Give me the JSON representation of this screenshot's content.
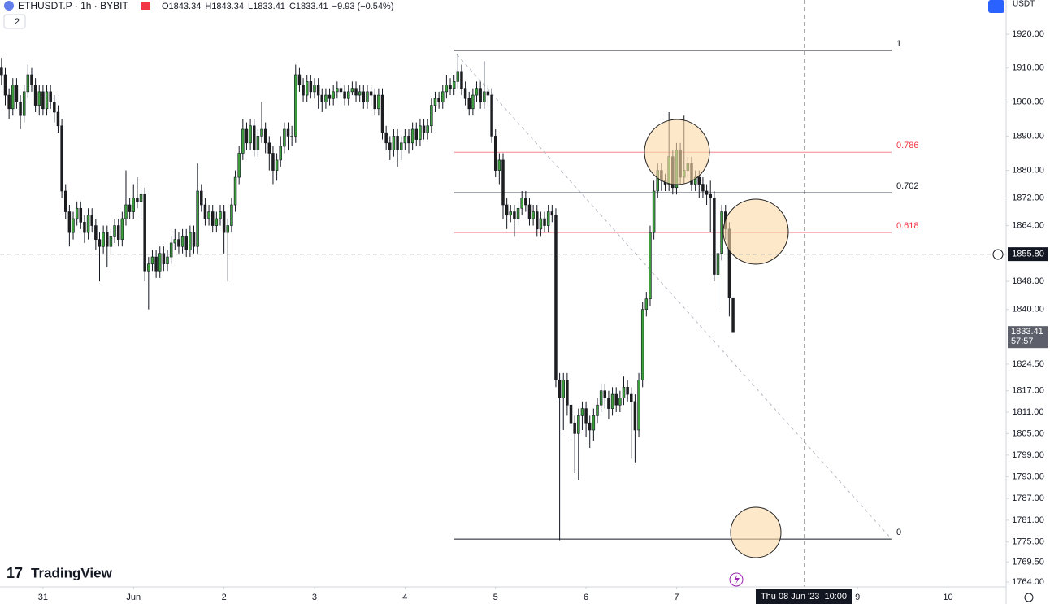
{
  "chart_data": {
    "type": "candlestick",
    "title": "ETHUSDT.P · 1h · BYBIT",
    "ohlc_legend": [
      "O1843.34",
      "H1843.34",
      "L1833.41",
      "C1833.41",
      "−9.93 (−0.54%)"
    ],
    "log_scale": true,
    "grid": false,
    "up_color": "#3c9f3c",
    "down_color": "#1e1e1e",
    "xlim": [
      -0.4,
      266.4
    ],
    "ylim": [
      1762.7,
      1930.2
    ],
    "yticks": [
      {
        "value": 1920,
        "label": "1920.00"
      },
      {
        "value": 1910,
        "label": "1910.00"
      },
      {
        "value": 1900,
        "label": "1900.00"
      },
      {
        "value": 1890,
        "label": "1890.00"
      },
      {
        "value": 1880,
        "label": "1880.00"
      },
      {
        "value": 1872,
        "label": "1872.00"
      },
      {
        "value": 1864,
        "label": "1864.00"
      },
      {
        "value": 1848,
        "label": "1848.00"
      },
      {
        "value": 1840,
        "label": "1840.00"
      },
      {
        "value": 1824.5,
        "label": "1824.50"
      },
      {
        "value": 1817,
        "label": "1817.00"
      },
      {
        "value": 1811,
        "label": "1811.00"
      },
      {
        "value": 1805,
        "label": "1805.00"
      },
      {
        "value": 1799,
        "label": "1799.00"
      },
      {
        "value": 1793,
        "label": "1793.00"
      },
      {
        "value": 1787,
        "label": "1787.00"
      },
      {
        "value": 1781,
        "label": "1781.00"
      },
      {
        "value": 1775,
        "label": "1775.00"
      },
      {
        "value": 1769.5,
        "label": "1769.50"
      },
      {
        "value": 1764,
        "label": "1764.00"
      }
    ],
    "xticks": [
      {
        "value": 11,
        "label": "31"
      },
      {
        "value": 35,
        "label": "Jun"
      },
      {
        "value": 59,
        "label": "2"
      },
      {
        "value": 83,
        "label": "3"
      },
      {
        "value": 107,
        "label": "4"
      },
      {
        "value": 131,
        "label": "5"
      },
      {
        "value": 155,
        "label": "6"
      },
      {
        "value": 179,
        "label": "7"
      },
      {
        "value": 227,
        "label": "9"
      },
      {
        "value": 251,
        "label": "10"
      }
    ],
    "open": [
      1910,
      1908,
      1902,
      1898,
      1905,
      1900,
      1896,
      1903,
      1908,
      1905,
      1899,
      1903,
      1898,
      1903,
      1900,
      1897,
      1893,
      1874,
      1868,
      1862,
      1866,
      1869,
      1865,
      1862,
      1867,
      1864,
      1860,
      1858,
      1862,
      1858,
      1861,
      1864,
      1860,
      1866,
      1870,
      1868,
      1872,
      1871,
      1873,
      1851,
      1853,
      1855,
      1851,
      1856,
      1853,
      1855,
      1859,
      1860,
      1858,
      1861,
      1857,
      1862,
      1858,
      1874,
      1870,
      1866,
      1868,
      1864,
      1866,
      1868,
      1862,
      1864,
      1870,
      1878,
      1885,
      1892,
      1888,
      1893,
      1886,
      1890,
      1892,
      1888,
      1885,
      1880,
      1883,
      1887,
      1892,
      1890,
      1890,
      1908,
      1905,
      1902,
      1906,
      1903,
      1905,
      1902,
      1900,
      1902,
      1901,
      1903,
      1904,
      1903,
      1901,
      1903,
      1904,
      1902,
      1903,
      1900,
      1903,
      1902,
      1898,
      1902,
      1891,
      1888,
      1886,
      1890,
      1886,
      1888,
      1890,
      1888,
      1892,
      1889,
      1893,
      1891,
      1893,
      1899,
      1901,
      1900,
      1903,
      1905,
      1904,
      1906,
      1909,
      1904,
      1901,
      1898,
      1902,
      1904,
      1900,
      1903,
      1902,
      1890,
      1880,
      1883,
      1870,
      1867,
      1868,
      1866,
      1869,
      1872,
      1870,
      1866,
      1868,
      1863,
      1866,
      1864,
      1868,
      1867,
      1820,
      1815,
      1820,
      1813,
      1808,
      1805,
      1810,
      1812,
      1808,
      1806,
      1810,
      1813,
      1817,
      1815,
      1812,
      1816,
      1813,
      1815,
      1818,
      1816,
      1814,
      1806,
      1820,
      1840,
      1843,
      1862,
      1874,
      1880,
      1877,
      1876,
      1884,
      1875,
      1886,
      1878,
      1880,
      1882,
      1876,
      1878,
      1876,
      1874,
      1873,
      1872,
      1850,
      1856,
      1868,
      1863,
      1843.34
    ],
    "high": [
      1913,
      1910,
      1904,
      1907,
      1907,
      1902,
      1905,
      1911,
      1910,
      1907,
      1905,
      1905,
      1905,
      1905,
      1902,
      1899,
      1895,
      1876,
      1870,
      1868,
      1871,
      1871,
      1867,
      1869,
      1869,
      1866,
      1862,
      1864,
      1864,
      1863,
      1866,
      1866,
      1868,
      1880,
      1872,
      1876,
      1878,
      1875,
      1875,
      1855,
      1857,
      1857,
      1858,
      1858,
      1857,
      1861,
      1863,
      1862,
      1863,
      1863,
      1864,
      1864,
      1882,
      1876,
      1872,
      1870,
      1870,
      1868,
      1870,
      1870,
      1866,
      1872,
      1880,
      1887,
      1895,
      1894,
      1895,
      1895,
      1892,
      1900,
      1894,
      1890,
      1887,
      1885,
      1890,
      1894,
      1894,
      1893,
      1911,
      1910,
      1907,
      1908,
      1908,
      1907,
      1907,
      1904,
      1904,
      1904,
      1905,
      1906,
      1906,
      1905,
      1905,
      1906,
      1906,
      1905,
      1905,
      1905,
      1905,
      1904,
      1904,
      1904,
      1893,
      1890,
      1892,
      1892,
      1890,
      1892,
      1892,
      1894,
      1894,
      1895,
      1895,
      1895,
      1901,
      1903,
      1903,
      1905,
      1908,
      1907,
      1908,
      1914,
      1911,
      1906,
      1903,
      1904,
      1906,
      1906,
      1912,
      1905,
      1904,
      1892,
      1885,
      1885,
      1872,
      1870,
      1870,
      1871,
      1874,
      1874,
      1872,
      1870,
      1870,
      1868,
      1868,
      1870,
      1870,
      1869,
      1822,
      1822,
      1822,
      1815,
      1810,
      1812,
      1814,
      1814,
      1810,
      1812,
      1815,
      1819,
      1819,
      1817,
      1818,
      1818,
      1817,
      1821,
      1820,
      1818,
      1816,
      1822,
      1842,
      1845,
      1864,
      1877,
      1882,
      1882,
      1879,
      1897,
      1886,
      1888,
      1888,
      1896,
      1884,
      1884,
      1880,
      1880,
      1878,
      1876,
      1877,
      1874,
      1858,
      1870,
      1870,
      1865,
      1843.34
    ],
    "low": [
      1905,
      1899,
      1895,
      1896,
      1898,
      1892,
      1894,
      1901,
      1903,
      1897,
      1896,
      1896,
      1896,
      1898,
      1894,
      1891,
      1872,
      1866,
      1858,
      1860,
      1864,
      1863,
      1859,
      1860,
      1862,
      1857,
      1848,
      1856,
      1852,
      1856,
      1859,
      1858,
      1858,
      1864,
      1866,
      1866,
      1869,
      1866,
      1848,
      1840,
      1851,
      1849,
      1849,
      1851,
      1851,
      1853,
      1857,
      1856,
      1856,
      1855,
      1855,
      1856,
      1856,
      1868,
      1864,
      1864,
      1862,
      1862,
      1864,
      1856,
      1848,
      1862,
      1868,
      1876,
      1883,
      1886,
      1886,
      1884,
      1884,
      1888,
      1885,
      1880,
      1876,
      1877,
      1881,
      1885,
      1886,
      1887,
      1888,
      1903,
      1900,
      1900,
      1901,
      1901,
      1898,
      1897,
      1898,
      1899,
      1899,
      1901,
      1901,
      1899,
      1899,
      1902,
      1900,
      1900,
      1898,
      1898,
      1899,
      1896,
      1896,
      1889,
      1886,
      1883,
      1884,
      1881,
      1883,
      1886,
      1885,
      1886,
      1887,
      1887,
      1889,
      1889,
      1891,
      1897,
      1898,
      1898,
      1901,
      1902,
      1902,
      1904,
      1902,
      1899,
      1896,
      1896,
      1900,
      1898,
      1898,
      1899,
      1888,
      1878,
      1876,
      1866,
      1863,
      1865,
      1861,
      1864,
      1867,
      1868,
      1864,
      1864,
      1861,
      1861,
      1862,
      1862,
      1865,
      1818,
      1775.5,
      1806,
      1810,
      1803,
      1794,
      1792,
      1806,
      1804,
      1801,
      1803,
      1808,
      1811,
      1812,
      1809,
      1810,
      1811,
      1811,
      1813,
      1814,
      1798,
      1797,
      1804,
      1818,
      1838,
      1841,
      1860,
      1872,
      1874,
      1874,
      1874,
      1873,
      1873,
      1876,
      1876,
      1877,
      1874,
      1874,
      1872,
      1872,
      1870,
      1862,
      1848,
      1841,
      1854,
      1860,
      1838,
      1833.41
    ],
    "close": [
      1908,
      1902,
      1898,
      1905,
      1900,
      1896,
      1903,
      1908,
      1905,
      1899,
      1903,
      1898,
      1903,
      1900,
      1897,
      1893,
      1874,
      1868,
      1862,
      1866,
      1869,
      1865,
      1862,
      1867,
      1864,
      1860,
      1858,
      1862,
      1858,
      1861,
      1864,
      1860,
      1866,
      1870,
      1868,
      1872,
      1871,
      1873,
      1851,
      1853,
      1855,
      1851,
      1856,
      1853,
      1855,
      1859,
      1860,
      1858,
      1861,
      1857,
      1862,
      1858,
      1874,
      1870,
      1866,
      1868,
      1864,
      1866,
      1868,
      1862,
      1864,
      1870,
      1878,
      1885,
      1892,
      1888,
      1893,
      1886,
      1890,
      1892,
      1888,
      1885,
      1880,
      1883,
      1887,
      1892,
      1890,
      1890,
      1908,
      1905,
      1902,
      1906,
      1903,
      1905,
      1902,
      1900,
      1902,
      1901,
      1903,
      1904,
      1903,
      1901,
      1903,
      1904,
      1902,
      1903,
      1900,
      1903,
      1902,
      1898,
      1902,
      1891,
      1888,
      1886,
      1890,
      1886,
      1888,
      1890,
      1888,
      1892,
      1889,
      1893,
      1891,
      1893,
      1899,
      1901,
      1900,
      1903,
      1905,
      1904,
      1906,
      1909,
      1904,
      1901,
      1898,
      1902,
      1904,
      1900,
      1903,
      1902,
      1890,
      1880,
      1883,
      1870,
      1867,
      1868,
      1866,
      1869,
      1872,
      1870,
      1866,
      1868,
      1863,
      1866,
      1864,
      1868,
      1867,
      1820,
      1815,
      1820,
      1813,
      1808,
      1805,
      1810,
      1812,
      1808,
      1806,
      1810,
      1813,
      1817,
      1815,
      1812,
      1816,
      1813,
      1815,
      1818,
      1816,
      1814,
      1806,
      1820,
      1840,
      1843,
      1862,
      1874,
      1880,
      1877,
      1876,
      1884,
      1875,
      1886,
      1878,
      1880,
      1882,
      1876,
      1878,
      1876,
      1874,
      1873,
      1872,
      1850,
      1856,
      1868,
      1863,
      1843.34,
      1833.41
    ],
    "fib_levels": [
      {
        "label": "1",
        "value": 1915.2,
        "color": "#131722"
      },
      {
        "label": "0.786",
        "value": 1885.3,
        "color": "#f23645"
      },
      {
        "label": "0.702",
        "value": 1873.5,
        "color": "#131722"
      },
      {
        "label": "0.618",
        "value": 1862.0,
        "color": "#f23645"
      },
      {
        "label": "0",
        "value": 1775.8,
        "color": "#131722"
      }
    ],
    "crosshair_price": {
      "value": 1855.8,
      "label": "1855.80"
    },
    "crosshair_time": "Thu 08 Jun '23  10:00",
    "last_price": 1833.41,
    "countdown": "57:57"
  },
  "ui": {
    "indicator_count": "2",
    "currency": "USDT",
    "brand": "TradingView"
  }
}
